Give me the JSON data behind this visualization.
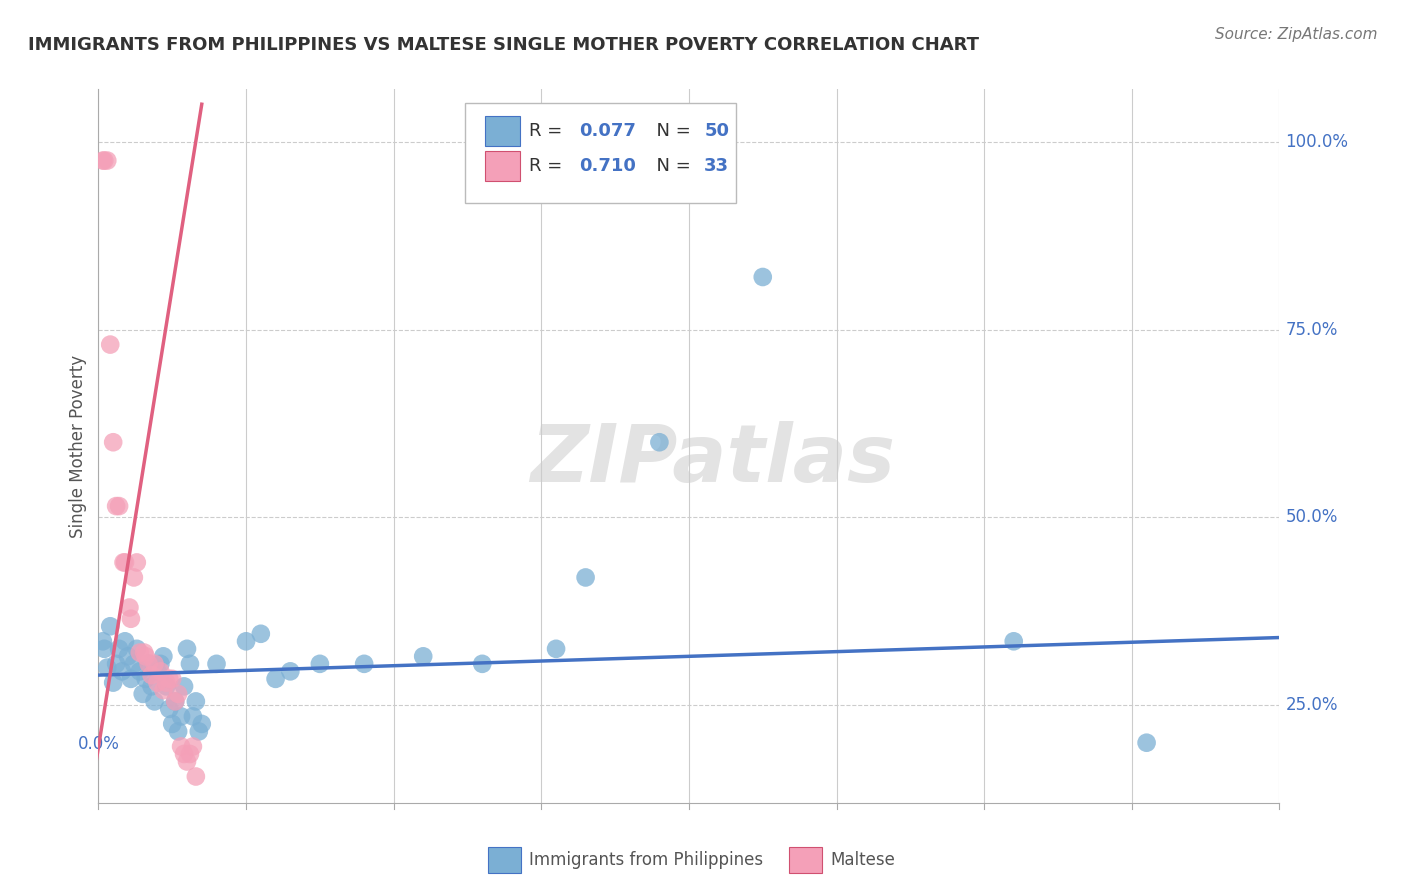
{
  "title": "IMMIGRANTS FROM PHILIPPINES VS MALTESE SINGLE MOTHER POVERTY CORRELATION CHART",
  "source": "Source: ZipAtlas.com",
  "ylabel": "Single Mother Poverty",
  "yticks": [
    0.25,
    0.5,
    0.75,
    1.0
  ],
  "ytick_labels": [
    "25.0%",
    "50.0%",
    "75.0%",
    "100.0%"
  ],
  "xlim": [
    0.0,
    0.4
  ],
  "ylim": [
    0.12,
    1.07
  ],
  "watermark": "ZIPatlas",
  "blue_color": "#7bafd4",
  "blue_edge": "#4472c4",
  "pink_color": "#f4a0b8",
  "pink_edge": "#d05070",
  "trend_blue": "#4472c4",
  "trend_pink": "#e06080",
  "grid_color": "#cccccc",
  "grid_style": "--",
  "axis_label_color": "#4472c4",
  "title_color": "#333333",
  "source_color": "#777777",
  "background": "#ffffff",
  "series_blue": {
    "R": 0.077,
    "N": 50,
    "points": [
      [
        0.0015,
        0.335
      ],
      [
        0.002,
        0.325
      ],
      [
        0.003,
        0.3
      ],
      [
        0.004,
        0.355
      ],
      [
        0.005,
        0.28
      ],
      [
        0.006,
        0.305
      ],
      [
        0.007,
        0.325
      ],
      [
        0.008,
        0.295
      ],
      [
        0.009,
        0.335
      ],
      [
        0.01,
        0.315
      ],
      [
        0.011,
        0.285
      ],
      [
        0.012,
        0.305
      ],
      [
        0.013,
        0.325
      ],
      [
        0.014,
        0.295
      ],
      [
        0.015,
        0.265
      ],
      [
        0.016,
        0.285
      ],
      [
        0.017,
        0.305
      ],
      [
        0.018,
        0.275
      ],
      [
        0.019,
        0.255
      ],
      [
        0.02,
        0.295
      ],
      [
        0.021,
        0.305
      ],
      [
        0.022,
        0.315
      ],
      [
        0.023,
        0.275
      ],
      [
        0.024,
        0.245
      ],
      [
        0.025,
        0.225
      ],
      [
        0.026,
        0.255
      ],
      [
        0.027,
        0.215
      ],
      [
        0.028,
        0.235
      ],
      [
        0.029,
        0.275
      ],
      [
        0.03,
        0.325
      ],
      [
        0.031,
        0.305
      ],
      [
        0.032,
        0.235
      ],
      [
        0.033,
        0.255
      ],
      [
        0.034,
        0.215
      ],
      [
        0.035,
        0.225
      ],
      [
        0.04,
        0.305
      ],
      [
        0.05,
        0.335
      ],
      [
        0.055,
        0.345
      ],
      [
        0.06,
        0.285
      ],
      [
        0.065,
        0.295
      ],
      [
        0.075,
        0.305
      ],
      [
        0.09,
        0.305
      ],
      [
        0.11,
        0.315
      ],
      [
        0.13,
        0.305
      ],
      [
        0.155,
        0.325
      ],
      [
        0.165,
        0.42
      ],
      [
        0.19,
        0.6
      ],
      [
        0.225,
        0.82
      ],
      [
        0.31,
        0.335
      ],
      [
        0.355,
        0.2
      ]
    ],
    "trend_x": [
      0.0,
      0.4
    ],
    "trend_y": [
      0.29,
      0.34
    ]
  },
  "series_pink": {
    "R": 0.71,
    "N": 33,
    "points": [
      [
        0.0015,
        0.975
      ],
      [
        0.002,
        0.975
      ],
      [
        0.003,
        0.975
      ],
      [
        0.004,
        0.73
      ],
      [
        0.005,
        0.6
      ],
      [
        0.006,
        0.515
      ],
      [
        0.007,
        0.515
      ],
      [
        0.0085,
        0.44
      ],
      [
        0.009,
        0.44
      ],
      [
        0.0105,
        0.38
      ],
      [
        0.011,
        0.365
      ],
      [
        0.012,
        0.42
      ],
      [
        0.013,
        0.44
      ],
      [
        0.014,
        0.32
      ],
      [
        0.0155,
        0.32
      ],
      [
        0.016,
        0.315
      ],
      [
        0.017,
        0.305
      ],
      [
        0.018,
        0.29
      ],
      [
        0.019,
        0.305
      ],
      [
        0.02,
        0.28
      ],
      [
        0.021,
        0.295
      ],
      [
        0.022,
        0.27
      ],
      [
        0.023,
        0.28
      ],
      [
        0.024,
        0.285
      ],
      [
        0.025,
        0.285
      ],
      [
        0.026,
        0.255
      ],
      [
        0.027,
        0.265
      ],
      [
        0.028,
        0.195
      ],
      [
        0.029,
        0.185
      ],
      [
        0.03,
        0.175
      ],
      [
        0.031,
        0.185
      ],
      [
        0.032,
        0.195
      ],
      [
        0.033,
        0.155
      ]
    ],
    "trend_x": [
      -0.002,
      0.035
    ],
    "trend_y": [
      0.145,
      1.05
    ]
  },
  "legend_R1": "0.077",
  "legend_N1": "50",
  "legend_R2": "0.710",
  "legend_N2": "33"
}
